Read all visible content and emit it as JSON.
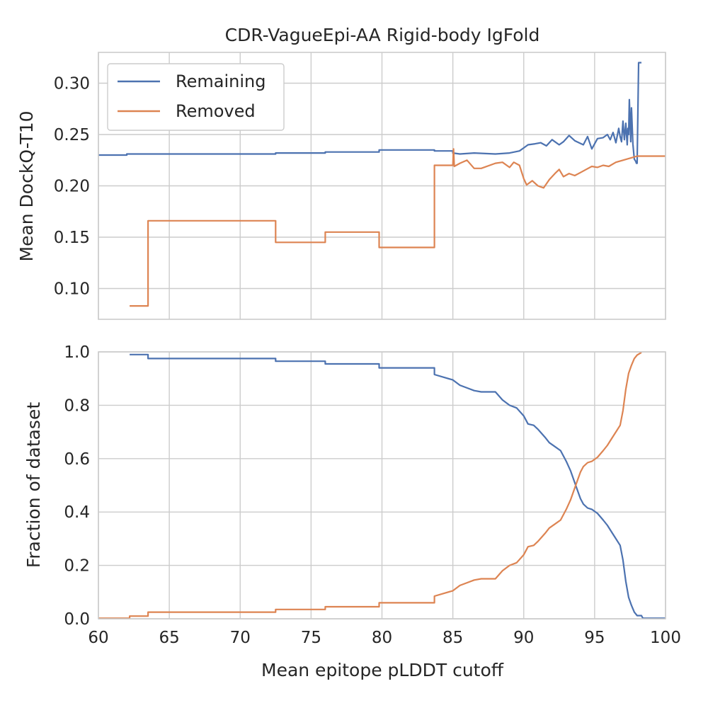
{
  "chart_data": [
    {
      "type": "line",
      "title": "CDR-VagueEpi-AA Rigid-body IgFold",
      "xlabel": "",
      "ylabel": "Mean DockQ-T10",
      "xlim": [
        60,
        100
      ],
      "ylim": [
        0.07,
        0.33
      ],
      "xticks": [
        60,
        65,
        70,
        75,
        80,
        85,
        90,
        95,
        100
      ],
      "yticks": [
        "0.10",
        "0.15",
        "0.20",
        "0.25",
        "0.30"
      ],
      "xtick_labels_visible": false,
      "grid": true,
      "legend": {
        "placement": "top-left",
        "entries": [
          "Remaining",
          "Removed"
        ]
      },
      "series": [
        {
          "name": "Remaining",
          "color": "#4c72b0",
          "x": [
            60,
            62,
            62,
            63.5,
            63.5,
            72.5,
            72.5,
            76,
            76,
            79.8,
            79.8,
            83.7,
            83.7,
            85,
            85,
            85.5,
            86.5,
            88,
            89,
            89.7,
            90,
            90.3,
            90.8,
            91.2,
            91.6,
            92,
            92.5,
            92.8,
            93.2,
            93.6,
            93.9,
            94.2,
            94.5,
            94.8,
            95.2,
            95.6,
            95.9,
            96.1,
            96.3,
            96.5,
            96.7,
            96.8,
            96.9,
            97,
            97.1,
            97.2,
            97.3,
            97.35,
            97.4,
            97.45,
            97.55,
            97.6,
            97.7,
            97.8,
            97.9,
            97.95,
            98.0,
            98.1,
            98.2,
            98.3
          ],
          "y": [
            0.23,
            0.23,
            0.231,
            0.231,
            0.231,
            0.231,
            0.232,
            0.232,
            0.233,
            0.233,
            0.235,
            0.235,
            0.234,
            0.234,
            0.232,
            0.231,
            0.232,
            0.231,
            0.232,
            0.234,
            0.237,
            0.24,
            0.241,
            0.242,
            0.239,
            0.245,
            0.24,
            0.243,
            0.249,
            0.244,
            0.242,
            0.24,
            0.248,
            0.236,
            0.246,
            0.247,
            0.25,
            0.245,
            0.252,
            0.242,
            0.256,
            0.248,
            0.243,
            0.263,
            0.245,
            0.261,
            0.24,
            0.256,
            0.25,
            0.284,
            0.243,
            0.276,
            0.241,
            0.226,
            0.224,
            0.222,
            0.222,
            0.32,
            0.32,
            0.32
          ]
        },
        {
          "name": "Removed",
          "color": "#dd8452",
          "x": [
            62.2,
            63.5,
            63.5,
            72.5,
            72.5,
            76,
            76,
            79.8,
            79.8,
            83.7,
            83.7,
            85,
            85.05,
            85.1,
            85.5,
            86,
            86.5,
            87,
            88,
            88.5,
            89,
            89.3,
            89.7,
            90,
            90.2,
            90.6,
            91,
            91.4,
            91.8,
            92.2,
            92.5,
            92.8,
            93.2,
            93.6,
            94,
            94.4,
            94.8,
            95.2,
            95.6,
            96,
            96.5,
            97,
            97.5,
            98,
            99,
            100
          ],
          "y": [
            0.083,
            0.083,
            0.166,
            0.166,
            0.145,
            0.145,
            0.155,
            0.155,
            0.14,
            0.14,
            0.22,
            0.22,
            0.236,
            0.219,
            0.222,
            0.225,
            0.217,
            0.217,
            0.222,
            0.223,
            0.218,
            0.223,
            0.22,
            0.207,
            0.201,
            0.205,
            0.2,
            0.198,
            0.206,
            0.212,
            0.216,
            0.209,
            0.212,
            0.21,
            0.213,
            0.216,
            0.219,
            0.218,
            0.22,
            0.219,
            0.223,
            0.225,
            0.227,
            0.229,
            0.229,
            0.229
          ]
        }
      ]
    },
    {
      "type": "line",
      "title": "",
      "xlabel": "Mean epitope pLDDT cutoff",
      "ylabel": "Fraction of dataset",
      "xlim": [
        60,
        100
      ],
      "ylim": [
        0,
        1
      ],
      "xticks": [
        60,
        65,
        70,
        75,
        80,
        85,
        90,
        95,
        100
      ],
      "yticks": [
        "0.0",
        "0.2",
        "0.4",
        "0.6",
        "0.8",
        "1.0"
      ],
      "grid": true,
      "legend": null,
      "series": [
        {
          "name": "Remaining",
          "color": "#4c72b0",
          "x": [
            62.2,
            63.5,
            63.5,
            72.5,
            72.5,
            76,
            76,
            79.8,
            79.8,
            83.7,
            83.7,
            85,
            85.5,
            86,
            86.5,
            87,
            88,
            88.5,
            89,
            89.5,
            90,
            90.3,
            90.7,
            91,
            91.5,
            91.8,
            92.2,
            92.6,
            93,
            93.3,
            93.6,
            93.8,
            94,
            94.2,
            94.5,
            94.8,
            95.2,
            95.6,
            95.9,
            96.2,
            96.5,
            96.8,
            97,
            97.2,
            97.4,
            97.6,
            97.8,
            98,
            98.3,
            98.4,
            100
          ],
          "y": [
            0.99,
            0.99,
            0.975,
            0.975,
            0.965,
            0.965,
            0.955,
            0.955,
            0.94,
            0.94,
            0.915,
            0.895,
            0.875,
            0.865,
            0.855,
            0.85,
            0.85,
            0.82,
            0.8,
            0.79,
            0.76,
            0.73,
            0.725,
            0.71,
            0.68,
            0.66,
            0.645,
            0.63,
            0.59,
            0.555,
            0.51,
            0.48,
            0.45,
            0.43,
            0.415,
            0.41,
            0.395,
            0.37,
            0.35,
            0.325,
            0.3,
            0.275,
            0.22,
            0.14,
            0.08,
            0.05,
            0.025,
            0.012,
            0.012,
            0.002,
            0.002
          ]
        },
        {
          "name": "Removed",
          "color": "#dd8452",
          "x": [
            60,
            62.2,
            62.2,
            63.5,
            63.5,
            72.5,
            72.5,
            76,
            76,
            79.8,
            79.8,
            83.7,
            83.7,
            85,
            85.5,
            86,
            86.5,
            87,
            88,
            88.5,
            89,
            89.5,
            90,
            90.3,
            90.7,
            91,
            91.5,
            91.8,
            92.2,
            92.6,
            93,
            93.3,
            93.6,
            93.8,
            94,
            94.2,
            94.5,
            94.8,
            95.2,
            95.6,
            95.9,
            96.2,
            96.5,
            96.8,
            97,
            97.2,
            97.4,
            97.6,
            97.8,
            98,
            98.3
          ],
          "y": [
            0.002,
            0.002,
            0.01,
            0.01,
            0.025,
            0.025,
            0.035,
            0.035,
            0.045,
            0.045,
            0.06,
            0.06,
            0.085,
            0.105,
            0.125,
            0.135,
            0.145,
            0.15,
            0.15,
            0.18,
            0.2,
            0.21,
            0.24,
            0.27,
            0.275,
            0.29,
            0.32,
            0.34,
            0.355,
            0.37,
            0.41,
            0.445,
            0.49,
            0.52,
            0.55,
            0.57,
            0.585,
            0.59,
            0.605,
            0.63,
            0.65,
            0.675,
            0.7,
            0.725,
            0.78,
            0.86,
            0.92,
            0.95,
            0.975,
            0.988,
            0.998
          ]
        }
      ]
    }
  ]
}
